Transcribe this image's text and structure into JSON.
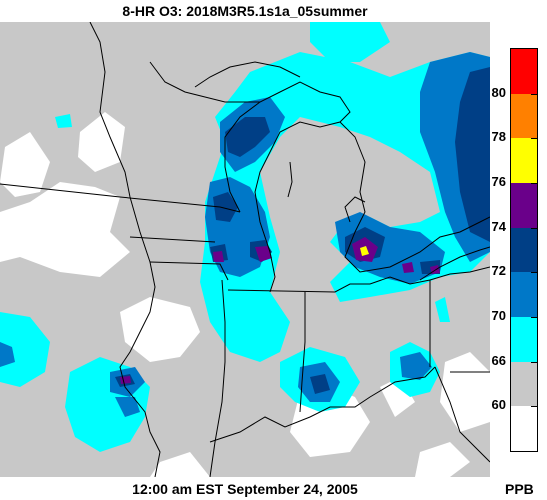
{
  "title": "8-HR O3: 2018M3R5.1s1a_05summer",
  "timestamp": "12:00 am EST September 24, 2005",
  "legend": {
    "unit": "PPB",
    "labels": [
      "80",
      "78",
      "76",
      "74",
      "72",
      "70",
      "66",
      "60"
    ],
    "bins": [
      {
        "color": "#ff0000"
      },
      {
        "color": "#ff8000"
      },
      {
        "color": "#ffff00"
      },
      {
        "color": "#6a008a"
      },
      {
        "color": "#003f86"
      },
      {
        "color": "#0078c8"
      },
      {
        "color": "#00ffff"
      },
      {
        "color": "#c8c8c8"
      },
      {
        "color": "#ffffff"
      }
    ]
  },
  "colors": {
    "background": "#c8c8c8",
    "boundary": "#000000"
  }
}
